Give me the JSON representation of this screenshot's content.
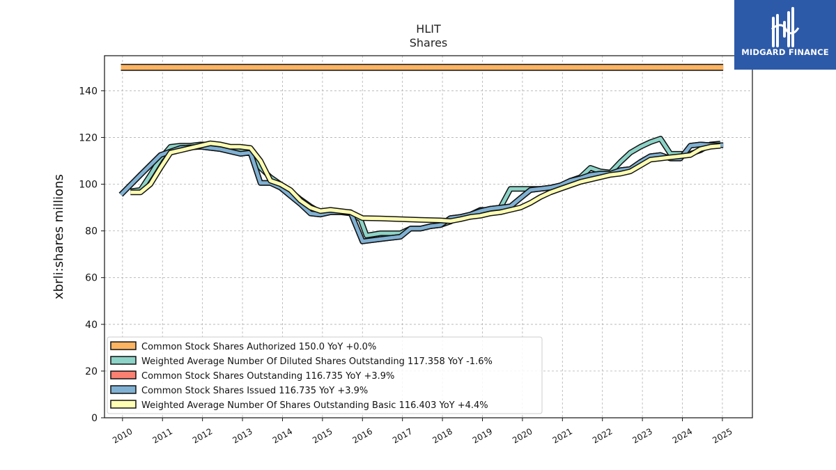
{
  "chart_data": {
    "type": "line",
    "title": "HLIT",
    "subtitle": "Shares",
    "ylabel": "xbrli:shares millions",
    "xlabel": "",
    "ylim": [
      0,
      155
    ],
    "xlim": [
      2009.55,
      2025.75
    ],
    "yticks": [
      0,
      20,
      40,
      60,
      80,
      100,
      120,
      140
    ],
    "xticks": [
      "2010",
      "2011",
      "2012",
      "2013",
      "2014",
      "2015",
      "2016",
      "2017",
      "2018",
      "2019",
      "2020",
      "2021",
      "2022",
      "2023",
      "2024",
      "2025"
    ],
    "grid": true,
    "legend_position": "lower-left",
    "series": [
      {
        "name": "Common Stock Shares Authorized",
        "legend": "Common Stock Shares Authorized  150.0 YoY +0.0%",
        "color": "#fdb462",
        "points": [
          [
            2009.96,
            150.0
          ],
          [
            2025.02,
            150.0
          ]
        ]
      },
      {
        "name": "Weighted Average Number Of Diluted Shares Outstanding",
        "legend": "Weighted Average Number Of Diluted Shares Outstanding  117.358 YoY -1.6%",
        "color": "#8dd3c7",
        "points": [
          [
            2010.2,
            97
          ],
          [
            2010.45,
            97.5
          ],
          [
            2010.7,
            104
          ],
          [
            2010.95,
            111
          ],
          [
            2011.2,
            116
          ],
          [
            2011.45,
            116.5
          ],
          [
            2011.7,
            116.5
          ],
          [
            2011.95,
            117
          ],
          [
            2012.2,
            117
          ],
          [
            2012.45,
            116
          ],
          [
            2012.7,
            115
          ],
          [
            2012.95,
            114
          ],
          [
            2013.2,
            114
          ],
          [
            2013.45,
            107
          ],
          [
            2013.7,
            103
          ],
          [
            2013.95,
            100
          ],
          [
            2014.2,
            97
          ],
          [
            2014.45,
            93.5
          ],
          [
            2014.7,
            90.5
          ],
          [
            2014.95,
            88
          ],
          [
            2015.2,
            88
          ],
          [
            2015.45,
            88
          ],
          [
            2015.7,
            87.5
          ],
          [
            2015.95,
            85
          ],
          [
            2016.1,
            78
          ],
          [
            2016.45,
            79
          ],
          [
            2016.7,
            79
          ],
          [
            2016.95,
            79
          ],
          [
            2017.2,
            81
          ],
          [
            2017.45,
            81
          ],
          [
            2017.7,
            82
          ],
          [
            2017.95,
            82.5
          ],
          [
            2018.2,
            84
          ],
          [
            2018.45,
            86
          ],
          [
            2018.7,
            87
          ],
          [
            2018.95,
            89
          ],
          [
            2019.2,
            89
          ],
          [
            2019.45,
            90
          ],
          [
            2019.7,
            98
          ],
          [
            2019.95,
            98
          ],
          [
            2020.2,
            98
          ],
          [
            2020.45,
            98
          ],
          [
            2020.7,
            98.5
          ],
          [
            2020.95,
            99
          ],
          [
            2021.2,
            101.5
          ],
          [
            2021.45,
            103
          ],
          [
            2021.7,
            107
          ],
          [
            2021.95,
            105.5
          ],
          [
            2022.2,
            105
          ],
          [
            2022.45,
            109.5
          ],
          [
            2022.7,
            113.5
          ],
          [
            2022.95,
            116
          ],
          [
            2023.2,
            118
          ],
          [
            2023.45,
            119.5
          ],
          [
            2023.7,
            113
          ],
          [
            2023.95,
            113
          ],
          [
            2024.2,
            113
          ],
          [
            2024.45,
            114.5
          ],
          [
            2024.7,
            117
          ],
          [
            2024.95,
            117.4
          ]
        ]
      },
      {
        "name": "Common Stock Shares Outstanding",
        "legend": "Common Stock Shares Outstanding  116.735 YoY +3.9%",
        "color": "#fb8072",
        "points": [
          [
            2009.96,
            95.5
          ],
          [
            2010.45,
            104
          ],
          [
            2010.95,
            112.5
          ],
          [
            2011.45,
            115.5
          ],
          [
            2011.95,
            116
          ],
          [
            2012.45,
            115
          ],
          [
            2012.95,
            113
          ],
          [
            2013.2,
            113.5
          ],
          [
            2013.45,
            100.5
          ],
          [
            2013.7,
            100.5
          ],
          [
            2013.95,
            98.5
          ],
          [
            2014.2,
            95
          ],
          [
            2014.45,
            91.5
          ],
          [
            2014.7,
            87.5
          ],
          [
            2014.95,
            87
          ],
          [
            2015.2,
            88
          ],
          [
            2015.45,
            88
          ],
          [
            2015.7,
            88
          ],
          [
            2016.0,
            75.5
          ],
          [
            2016.45,
            76.5
          ],
          [
            2016.95,
            77.5
          ],
          [
            2017.2,
            81
          ],
          [
            2017.45,
            81
          ],
          [
            2017.7,
            82
          ],
          [
            2017.95,
            82.5
          ],
          [
            2018.2,
            85.5
          ],
          [
            2018.45,
            86
          ],
          [
            2018.7,
            87
          ],
          [
            2018.95,
            88.5
          ],
          [
            2019.2,
            89.5
          ],
          [
            2019.45,
            90
          ],
          [
            2019.7,
            90.5
          ],
          [
            2019.95,
            94
          ],
          [
            2020.2,
            97.5
          ],
          [
            2020.45,
            98
          ],
          [
            2020.7,
            98.5
          ],
          [
            2020.95,
            99.5
          ],
          [
            2021.2,
            101.5
          ],
          [
            2021.45,
            102.5
          ],
          [
            2021.7,
            104
          ],
          [
            2021.95,
            104.5
          ],
          [
            2022.2,
            104.5
          ],
          [
            2022.45,
            106
          ],
          [
            2022.7,
            106.5
          ],
          [
            2022.95,
            109.5
          ],
          [
            2023.2,
            112
          ],
          [
            2023.45,
            112.5
          ],
          [
            2023.7,
            111
          ],
          [
            2023.95,
            111
          ],
          [
            2024.2,
            116.5
          ],
          [
            2024.45,
            117
          ],
          [
            2024.7,
            116.7
          ],
          [
            2025.02,
            116.7
          ]
        ]
      },
      {
        "name": "Common Stock Shares Issued",
        "legend": "Common Stock Shares Issued  116.735 YoY +3.9%",
        "color": "#80b1d3",
        "points": [
          [
            2009.96,
            95.5
          ],
          [
            2010.45,
            104
          ],
          [
            2010.95,
            112.5
          ],
          [
            2011.45,
            115.5
          ],
          [
            2011.95,
            116
          ],
          [
            2012.45,
            115
          ],
          [
            2012.95,
            113
          ],
          [
            2013.2,
            113.5
          ],
          [
            2013.45,
            100.5
          ],
          [
            2013.7,
            100.5
          ],
          [
            2013.95,
            98.5
          ],
          [
            2014.2,
            95
          ],
          [
            2014.45,
            91.5
          ],
          [
            2014.7,
            87.5
          ],
          [
            2014.95,
            87
          ],
          [
            2015.2,
            88
          ],
          [
            2015.45,
            88
          ],
          [
            2015.7,
            88
          ],
          [
            2016.0,
            75.5
          ],
          [
            2016.45,
            76.5
          ],
          [
            2016.95,
            77.5
          ],
          [
            2017.2,
            81
          ],
          [
            2017.45,
            81
          ],
          [
            2017.7,
            82
          ],
          [
            2017.95,
            82.5
          ],
          [
            2018.2,
            85.5
          ],
          [
            2018.45,
            86
          ],
          [
            2018.7,
            87
          ],
          [
            2018.95,
            88.5
          ],
          [
            2019.2,
            89.5
          ],
          [
            2019.45,
            90
          ],
          [
            2019.7,
            90.5
          ],
          [
            2019.95,
            94
          ],
          [
            2020.2,
            97.5
          ],
          [
            2020.45,
            98
          ],
          [
            2020.7,
            98.5
          ],
          [
            2020.95,
            99.5
          ],
          [
            2021.2,
            101.5
          ],
          [
            2021.45,
            102.5
          ],
          [
            2021.7,
            104
          ],
          [
            2021.95,
            104.5
          ],
          [
            2022.2,
            104.5
          ],
          [
            2022.45,
            106
          ],
          [
            2022.7,
            106.5
          ],
          [
            2022.95,
            109.5
          ],
          [
            2023.2,
            112
          ],
          [
            2023.45,
            112.5
          ],
          [
            2023.7,
            111
          ],
          [
            2023.95,
            111
          ],
          [
            2024.2,
            116.5
          ],
          [
            2024.45,
            117
          ],
          [
            2024.7,
            116.7
          ],
          [
            2025.02,
            116.7
          ]
        ]
      },
      {
        "name": "Weighted Average Number Of Shares Outstanding Basic",
        "legend": "Weighted Average Number Of Shares Outstanding Basic  116.403 YoY +4.4%",
        "color": "#ffffb3",
        "points": [
          [
            2010.2,
            96.5
          ],
          [
            2010.45,
            96.5
          ],
          [
            2010.7,
            100
          ],
          [
            2010.95,
            107
          ],
          [
            2011.2,
            113.5
          ],
          [
            2011.45,
            114.5
          ],
          [
            2011.7,
            115.5
          ],
          [
            2011.95,
            116.5
          ],
          [
            2012.2,
            117.5
          ],
          [
            2012.45,
            117
          ],
          [
            2012.7,
            116
          ],
          [
            2012.95,
            116
          ],
          [
            2013.2,
            115.5
          ],
          [
            2013.45,
            110
          ],
          [
            2013.7,
            101.5
          ],
          [
            2013.95,
            100
          ],
          [
            2014.2,
            97.5
          ],
          [
            2014.45,
            93
          ],
          [
            2014.7,
            90
          ],
          [
            2014.95,
            88.5
          ],
          [
            2015.2,
            89
          ],
          [
            2015.45,
            88.5
          ],
          [
            2015.7,
            88
          ],
          [
            2016.0,
            85.5
          ],
          [
            2016.45,
            85.3
          ],
          [
            2016.95,
            85
          ],
          [
            2017.45,
            84.7
          ],
          [
            2017.95,
            84.5
          ],
          [
            2018.2,
            84.2
          ],
          [
            2018.45,
            85
          ],
          [
            2018.7,
            86
          ],
          [
            2018.95,
            86.5
          ],
          [
            2019.2,
            87.5
          ],
          [
            2019.45,
            88
          ],
          [
            2019.7,
            89
          ],
          [
            2019.95,
            90
          ],
          [
            2020.2,
            92
          ],
          [
            2020.45,
            94.5
          ],
          [
            2020.7,
            96.5
          ],
          [
            2020.95,
            98
          ],
          [
            2021.2,
            99.5
          ],
          [
            2021.45,
            101
          ],
          [
            2021.7,
            102
          ],
          [
            2021.95,
            103
          ],
          [
            2022.2,
            104
          ],
          [
            2022.45,
            104.5
          ],
          [
            2022.7,
            105.5
          ],
          [
            2022.95,
            108
          ],
          [
            2023.2,
            110.5
          ],
          [
            2023.45,
            111
          ],
          [
            2023.7,
            111.5
          ],
          [
            2023.95,
            112
          ],
          [
            2024.2,
            112.5
          ],
          [
            2024.45,
            115
          ],
          [
            2024.7,
            116
          ],
          [
            2024.95,
            116.4
          ]
        ]
      }
    ]
  },
  "logo": {
    "text": "MIDGARD FINANCE",
    "background": "#2d5aa8"
  }
}
